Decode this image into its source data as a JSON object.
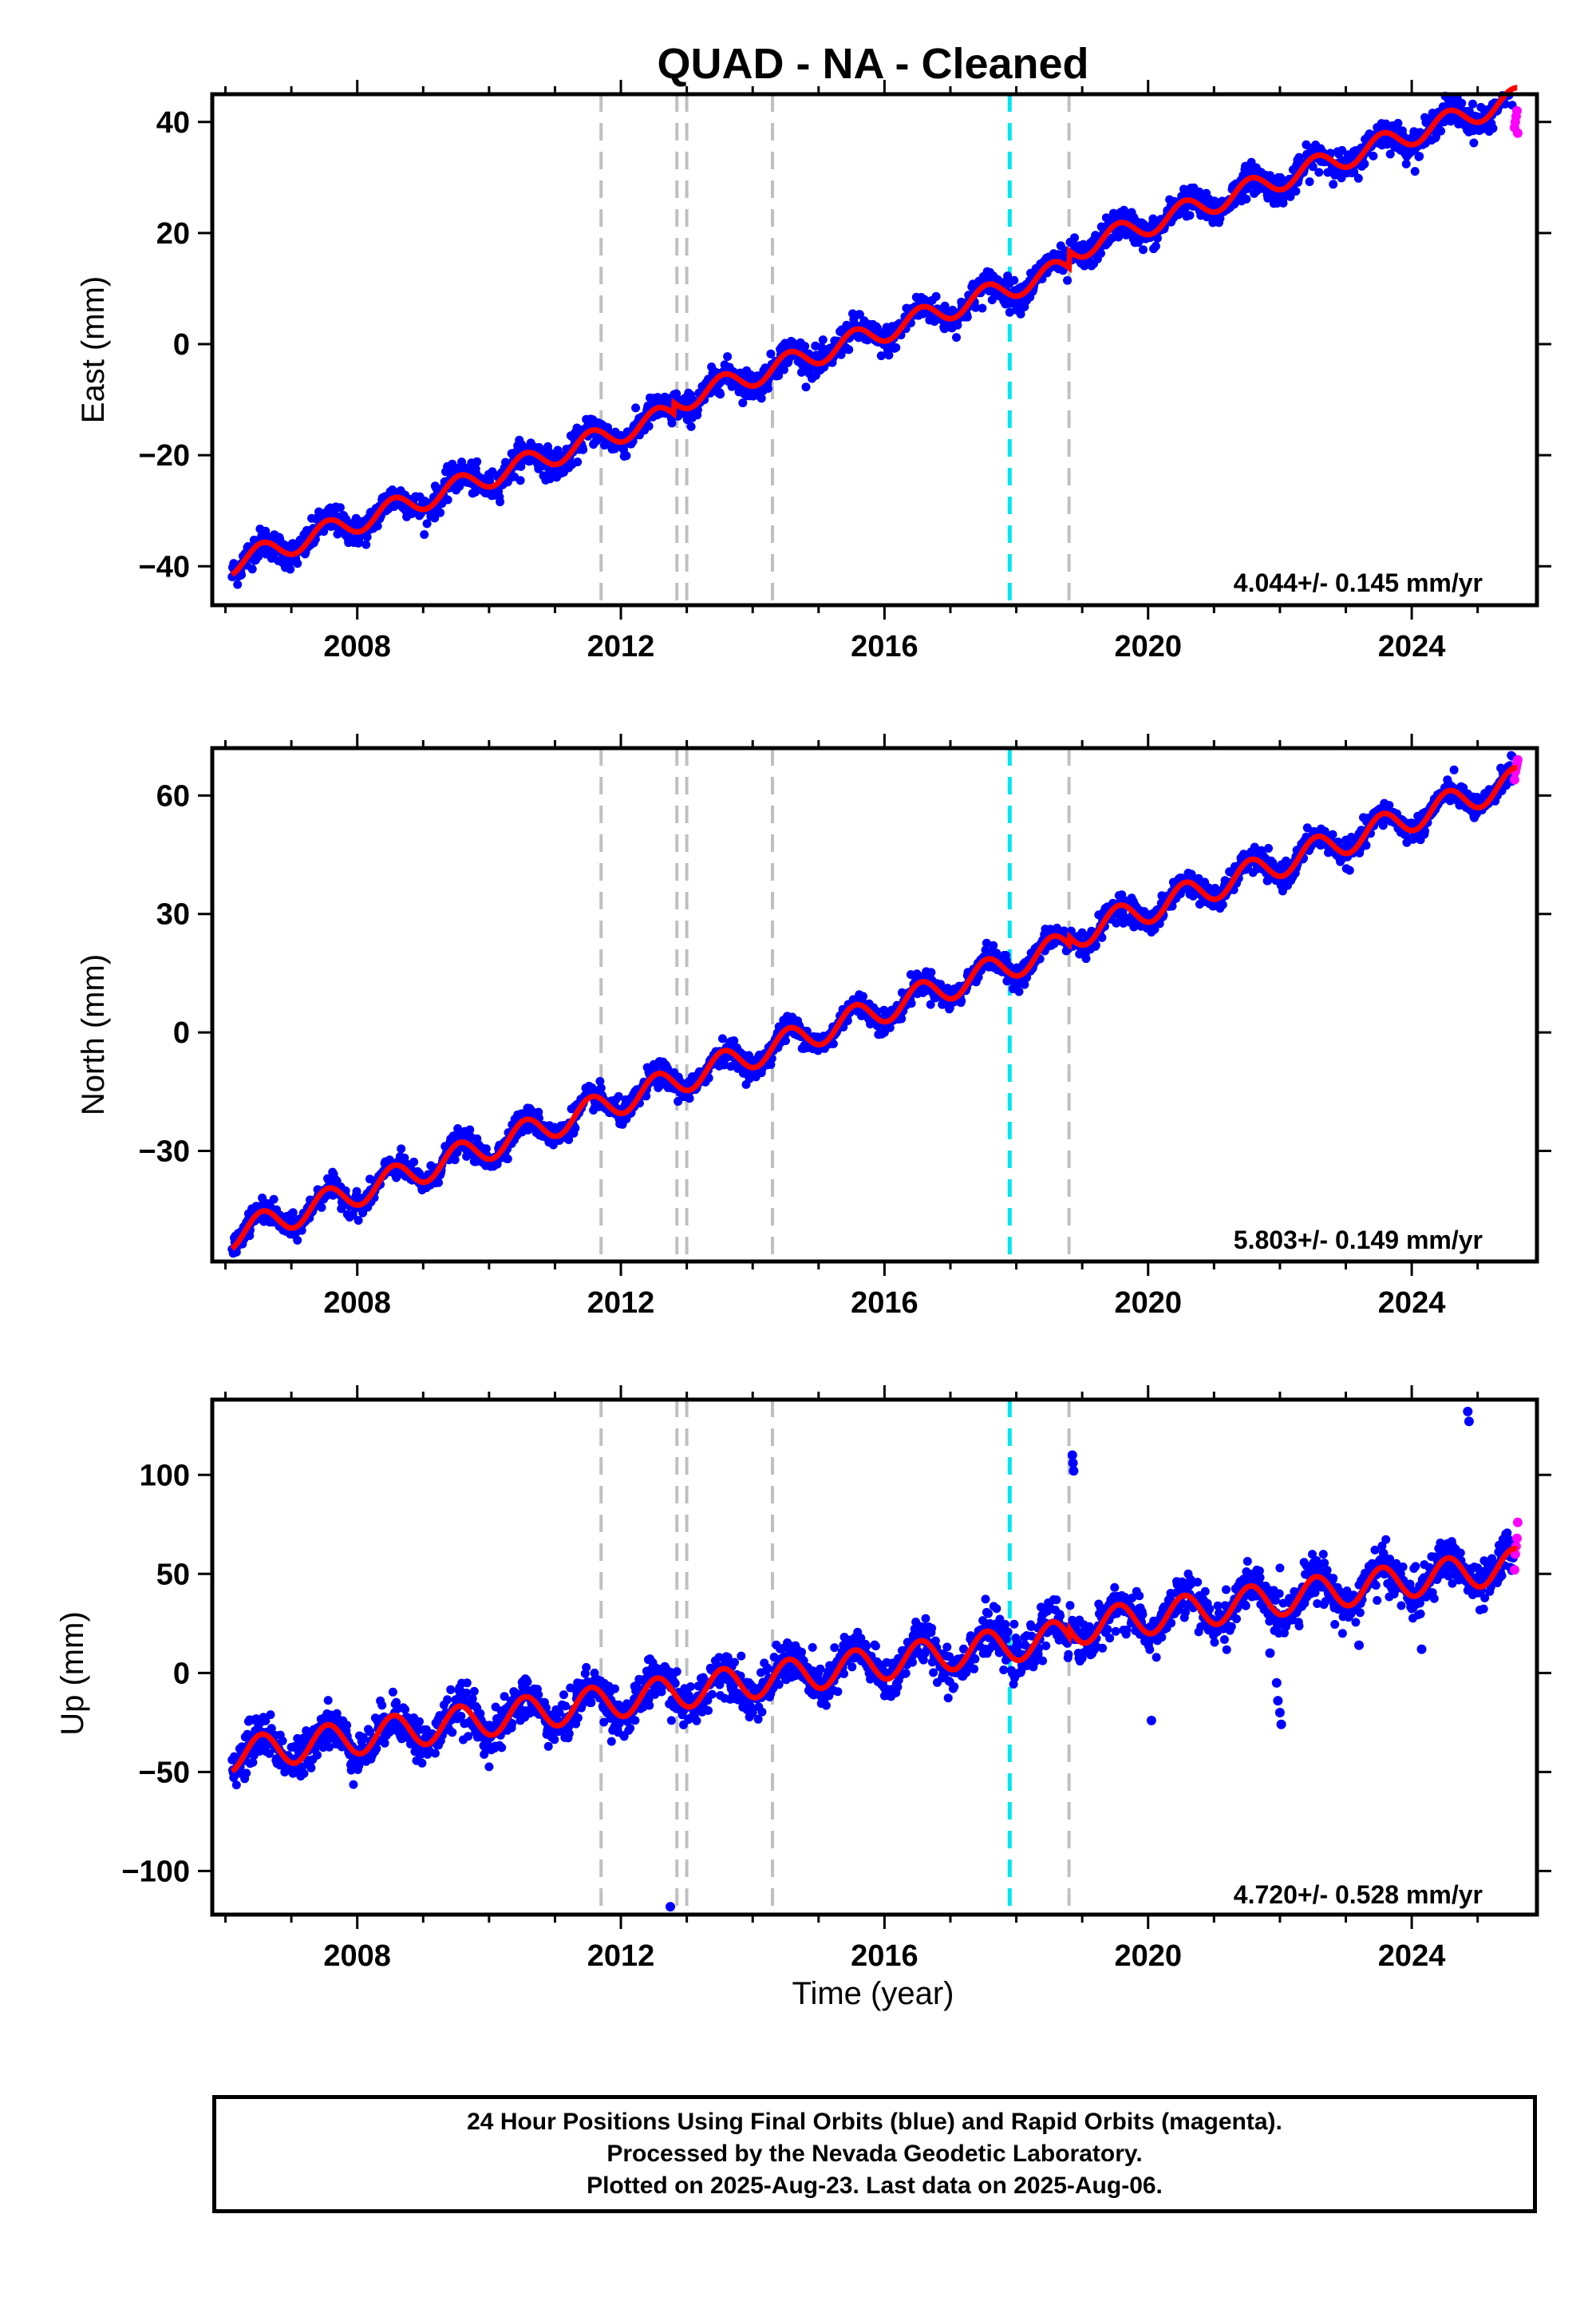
{
  "title": "QUAD  - NA - Cleaned",
  "xlabel": "Time (year)",
  "footer": {
    "line1": "24 Hour Positions Using Final Orbits (blue) and Rapid Orbits (magenta).",
    "line2": "Processed by the Nevada Geodetic Laboratory.",
    "line3": "Plotted on 2025-Aug-23. Last data on 2025-Aug-06."
  },
  "colors": {
    "final": "#0000ff",
    "rapid": "#ff00ff",
    "model": "#ff0000",
    "step": "#c0c0c0",
    "equipment": "#00e5ee"
  },
  "chart_data": [
    {
      "type": "scatter",
      "component": "east",
      "ylabel": "East (mm)",
      "xlim": [
        2005.8,
        2025.9
      ],
      "ylim": [
        -47,
        45
      ],
      "yticks": [
        -40,
        -20,
        0,
        20,
        40
      ],
      "xticks": [
        2008,
        2012,
        2016,
        2020,
        2024
      ],
      "rate_label": "4.044+/- 0.145 mm/yr",
      "rate": 4.044,
      "rate_sigma": 0.145,
      "intercept_2006": -40,
      "seasonal_amplitude": 2.0,
      "scatter_sd": 1.3,
      "offsets": [
        {
          "year": 2012.8,
          "value": 2
        },
        {
          "year": 2018.8,
          "value": 3
        }
      ],
      "outliers": [],
      "rapid_last": [
        39,
        40,
        41,
        42,
        38
      ],
      "data_start": 2006.1,
      "data_end": 2025.6
    },
    {
      "type": "scatter",
      "component": "north",
      "ylabel": "North (mm)",
      "xlim": [
        2005.8,
        2025.9
      ],
      "ylim": [
        -58,
        72
      ],
      "yticks": [
        -30,
        0,
        30,
        60
      ],
      "xticks": [
        2008,
        2012,
        2016,
        2020,
        2024
      ],
      "rate_label": "5.803+/- 0.149 mm/yr",
      "rate": 5.803,
      "rate_sigma": 0.149,
      "intercept_2006": -52,
      "seasonal_amplitude": 3.5,
      "scatter_sd": 1.5,
      "offsets": [
        {
          "year": 2018.8,
          "value": 2
        }
      ],
      "outliers": [],
      "rapid_last": [
        64,
        66,
        67,
        68,
        69
      ],
      "data_start": 2006.1,
      "data_end": 2025.6
    },
    {
      "type": "scatter",
      "component": "up",
      "ylabel": "Up (mm)",
      "xlim": [
        2005.8,
        2025.9
      ],
      "ylim": [
        -122,
        138
      ],
      "yticks": [
        -100,
        -50,
        0,
        50,
        100
      ],
      "xticks": [
        2008,
        2012,
        2016,
        2020,
        2024
      ],
      "rate_label": "4.720+/- 0.528 mm/yr",
      "rate": 4.72,
      "rate_sigma": 0.528,
      "intercept_2006": -42,
      "seasonal_amplitude": 8.5,
      "scatter_sd": 5.5,
      "offsets": [
        {
          "year": 2018.8,
          "value": 4
        }
      ],
      "outliers": [
        {
          "x": 2012.75,
          "y": -118
        },
        {
          "x": 2018.85,
          "y": 110
        },
        {
          "x": 2018.86,
          "y": 106
        },
        {
          "x": 2018.87,
          "y": 102
        },
        {
          "x": 2024.85,
          "y": 132
        },
        {
          "x": 2024.87,
          "y": 127
        },
        {
          "x": 2020.05,
          "y": -24
        },
        {
          "x": 2021.95,
          "y": -5
        },
        {
          "x": 2021.97,
          "y": -14
        },
        {
          "x": 2022.0,
          "y": -20
        },
        {
          "x": 2022.02,
          "y": -26
        },
        {
          "x": 2024.15,
          "y": 12
        },
        {
          "x": 2023.2,
          "y": 14
        },
        {
          "x": 2021.85,
          "y": 10
        }
      ],
      "rapid_last": [
        52,
        60,
        64,
        68,
        76
      ],
      "data_start": 2006.1,
      "data_end": 2025.6
    }
  ],
  "step_lines": [
    2011.7,
    2012.85,
    2013.0,
    2014.3,
    2018.8
  ],
  "equipment_lines": [
    2017.9
  ]
}
